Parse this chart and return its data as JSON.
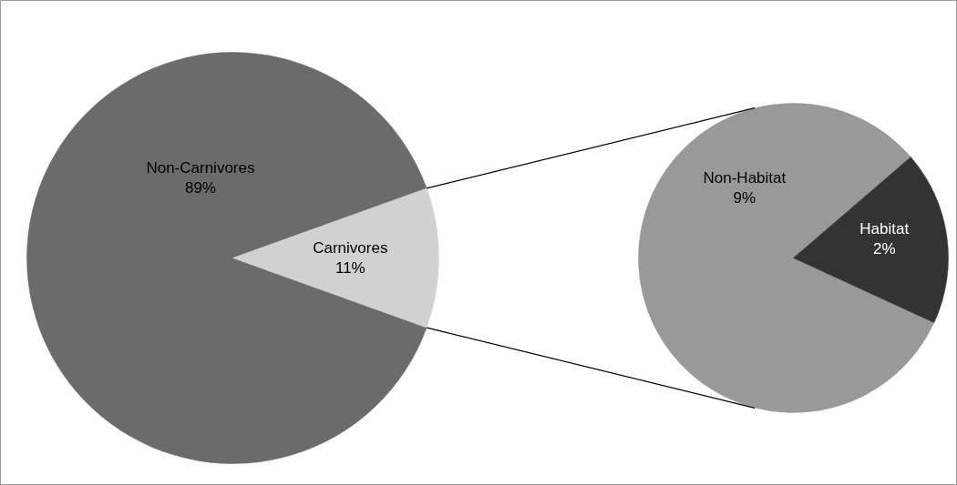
{
  "chart_data": [
    {
      "type": "pie",
      "categories": [
        "Non-Carnivores",
        "Carnivores"
      ],
      "values": [
        89,
        11
      ],
      "colors": [
        "#6b6b6b",
        "#d1d1d1"
      ],
      "value_labels": [
        "89%",
        "11%"
      ]
    },
    {
      "type": "pie",
      "categories": [
        "Non-Habitat",
        "Habitat"
      ],
      "values": [
        9,
        2
      ],
      "colors": [
        "#999999",
        "#333333"
      ],
      "value_labels": [
        "9%",
        "2%"
      ]
    }
  ]
}
